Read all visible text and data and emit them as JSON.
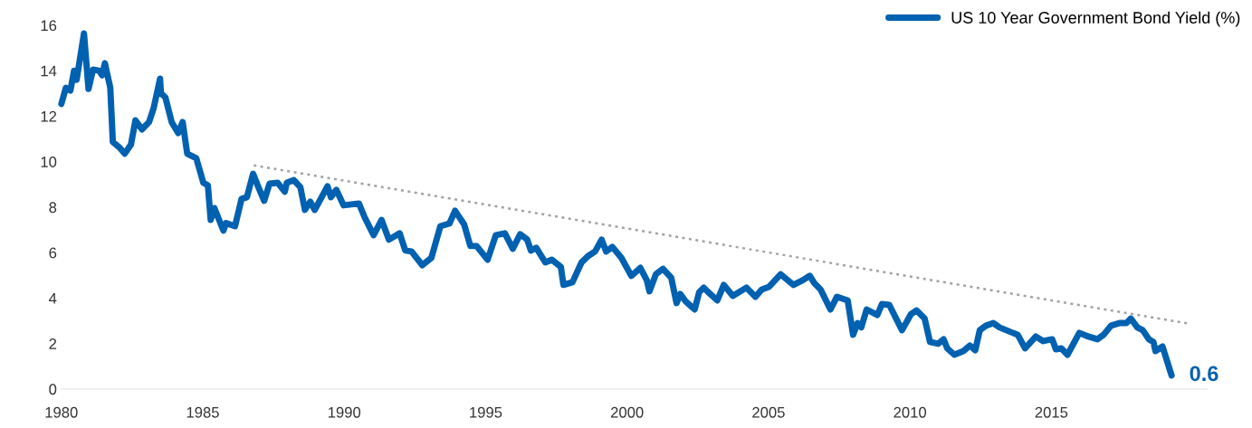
{
  "chart_data": {
    "type": "line",
    "xlim": [
      1980,
      2020.5
    ],
    "ylim": [
      0,
      16
    ],
    "xticks": [
      1980,
      1985,
      1990,
      1995,
      2000,
      2005,
      2010,
      2015
    ],
    "yticks": [
      0,
      2,
      4,
      6,
      8,
      10,
      12,
      14,
      16
    ],
    "grid": false,
    "legend": "top right",
    "marker": "none",
    "annotations": [
      {
        "text": "0.6",
        "x": 2019.25,
        "y": 0.6
      }
    ],
    "series": [
      {
        "name": "US 10 Year Government Bond Yield (%)",
        "color": "#0061b0",
        "line_style": "solid",
        "x": [
          1980.0,
          1980.16,
          1980.32,
          1980.45,
          1980.54,
          1980.8,
          1980.96,
          1981.12,
          1981.34,
          1981.44,
          1981.54,
          1981.73,
          1981.82,
          1982.05,
          1982.24,
          1982.46,
          1982.62,
          1982.85,
          1983.1,
          1983.26,
          1983.49,
          1983.52,
          1983.68,
          1983.9,
          1984.13,
          1984.29,
          1984.45,
          1984.77,
          1985.02,
          1985.18,
          1985.28,
          1985.41,
          1985.73,
          1985.82,
          1986.14,
          1986.37,
          1986.56,
          1986.78,
          1986.94,
          1987.17,
          1987.36,
          1987.65,
          1987.9,
          1987.97,
          1988.22,
          1988.45,
          1988.61,
          1988.8,
          1988.96,
          1989.41,
          1989.53,
          1989.72,
          1989.98,
          1990.52,
          1990.72,
          1991.04,
          1991.32,
          1991.58,
          1991.96,
          1992.16,
          1992.38,
          1992.76,
          1993.08,
          1993.4,
          1993.72,
          1993.92,
          1994.24,
          1994.46,
          1994.68,
          1995.07,
          1995.36,
          1995.68,
          1995.96,
          1996.22,
          1996.47,
          1996.6,
          1996.79,
          1997.11,
          1997.34,
          1997.66,
          1997.75,
          1998.07,
          1998.39,
          1998.62,
          1998.87,
          1999.1,
          1999.26,
          1999.48,
          1999.8,
          2000.15,
          2000.47,
          2000.7,
          2000.79,
          2001.02,
          2001.27,
          2001.56,
          2001.75,
          2001.88,
          2002.07,
          2002.39,
          2002.55,
          2002.71,
          2002.87,
          2003.19,
          2003.42,
          2003.74,
          2004.22,
          2004.54,
          2004.76,
          2005.02,
          2005.43,
          2005.88,
          2006.2,
          2006.46,
          2006.62,
          2006.84,
          2007.19,
          2007.42,
          2007.8,
          2007.99,
          2008.15,
          2008.28,
          2008.47,
          2008.85,
          2009.01,
          2009.27,
          2009.72,
          2010.04,
          2010.23,
          2010.52,
          2010.71,
          2011.0,
          2011.19,
          2011.32,
          2011.57,
          2011.89,
          2012.12,
          2012.31,
          2012.47,
          2012.69,
          2012.95,
          2013.17,
          2013.56,
          2013.81,
          2014.07,
          2014.45,
          2014.71,
          2015.03,
          2015.16,
          2015.35,
          2015.57,
          2015.99,
          2016.31,
          2016.63,
          2016.85,
          2017.11,
          2017.4,
          2017.65,
          2017.81,
          2018.04,
          2018.23,
          2018.45,
          2018.61,
          2018.68,
          2018.93,
          2019.25
        ],
        "values": [
          12.54,
          13.25,
          13.13,
          14.0,
          13.6,
          15.64,
          13.2,
          14.05,
          14.0,
          13.8,
          14.33,
          13.25,
          10.87,
          10.63,
          10.35,
          10.75,
          11.82,
          11.42,
          11.74,
          12.34,
          13.65,
          13.01,
          12.82,
          11.74,
          11.26,
          11.74,
          10.35,
          10.15,
          9.07,
          8.96,
          7.44,
          7.96,
          6.97,
          7.3,
          7.16,
          8.36,
          8.44,
          9.47,
          8.96,
          8.28,
          9.03,
          9.07,
          8.68,
          9.07,
          9.19,
          8.88,
          7.88,
          8.24,
          7.88,
          8.92,
          8.44,
          8.76,
          8.08,
          8.16,
          7.56,
          6.77,
          7.44,
          6.57,
          6.85,
          6.09,
          6.05,
          5.45,
          5.77,
          7.16,
          7.28,
          7.84,
          7.24,
          6.29,
          6.29,
          5.69,
          6.77,
          6.85,
          6.17,
          6.81,
          6.57,
          6.09,
          6.21,
          5.57,
          5.69,
          5.37,
          4.58,
          4.7,
          5.57,
          5.85,
          6.05,
          6.57,
          6.05,
          6.25,
          5.77,
          4.98,
          5.33,
          4.78,
          4.3,
          5.05,
          5.29,
          4.9,
          3.78,
          4.18,
          3.86,
          3.5,
          4.26,
          4.46,
          4.26,
          3.9,
          4.58,
          4.1,
          4.46,
          4.06,
          4.38,
          4.5,
          5.05,
          4.58,
          4.78,
          4.98,
          4.66,
          4.38,
          3.5,
          4.06,
          3.9,
          2.39,
          2.9,
          2.71,
          3.5,
          3.26,
          3.74,
          3.7,
          2.59,
          3.3,
          3.46,
          3.1,
          2.07,
          1.99,
          2.19,
          1.79,
          1.51,
          1.67,
          1.91,
          1.71,
          2.59,
          2.79,
          2.9,
          2.71,
          2.51,
          2.39,
          1.79,
          2.31,
          2.11,
          2.19,
          1.75,
          1.79,
          1.51,
          2.47,
          2.31,
          2.19,
          2.39,
          2.79,
          2.9,
          2.9,
          3.1,
          2.71,
          2.59,
          2.19,
          2.07,
          1.67,
          1.87,
          0.6
        ]
      },
      {
        "color": "#a0a4a8",
        "line_style": "dotted",
        "x": [
          1986.8,
          2019.9
        ],
        "values": [
          9.84,
          2.87
        ]
      }
    ]
  }
}
